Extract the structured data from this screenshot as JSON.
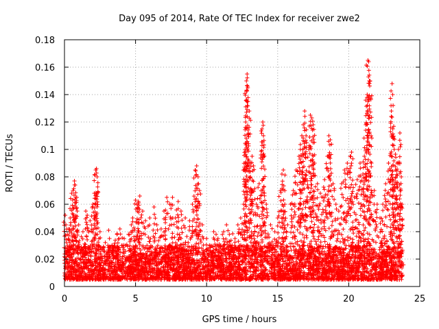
{
  "chart_data": {
    "type": "scatter",
    "title": "Day 095 of 2014, Rate Of TEC Index for receiver zwe2",
    "xlabel": "GPS time / hours",
    "ylabel": "ROTI / TECUs",
    "xlim": [
      0,
      25
    ],
    "ylim": [
      0,
      0.18
    ],
    "xticks": [
      0,
      5,
      10,
      15,
      20,
      25
    ],
    "yticks": [
      0,
      0.02,
      0.04,
      0.06,
      0.08,
      0.1,
      0.12,
      0.14,
      0.16,
      0.18
    ],
    "xtick_labels": [
      "0",
      "5",
      "10",
      "15",
      "20",
      "25"
    ],
    "ytick_labels": [
      "0",
      "0.02",
      "0.04",
      "0.06",
      "0.08",
      "0.1",
      "0.12",
      "0.14",
      "0.16",
      "0.18"
    ],
    "grid": true,
    "marker": "+",
    "series_color": "#ff0000",
    "x_data_range": [
      0,
      23.8
    ],
    "baseline_band": [
      0.005,
      0.03
    ],
    "series": [
      {
        "name": "ROTI",
        "points": [
          [
            0.05,
            0.052
          ],
          [
            0.1,
            0.045
          ],
          [
            0.2,
            0.038
          ],
          [
            0.3,
            0.042
          ],
          [
            0.4,
            0.05
          ],
          [
            0.5,
            0.068
          ],
          [
            0.6,
            0.07
          ],
          [
            0.7,
            0.077
          ],
          [
            0.75,
            0.074
          ],
          [
            0.8,
            0.065
          ],
          [
            0.9,
            0.055
          ],
          [
            1.0,
            0.045
          ],
          [
            1.3,
            0.04
          ],
          [
            1.5,
            0.055
          ],
          [
            1.6,
            0.052
          ],
          [
            1.8,
            0.048
          ],
          [
            2.0,
            0.06
          ],
          [
            2.1,
            0.068
          ],
          [
            2.2,
            0.085
          ],
          [
            2.25,
            0.086
          ],
          [
            2.3,
            0.08
          ],
          [
            2.5,
            0.04
          ],
          [
            3.0,
            0.02
          ],
          [
            3.2,
            0.022
          ],
          [
            3.5,
            0.03
          ],
          [
            3.7,
            0.038
          ],
          [
            3.9,
            0.042
          ],
          [
            4.2,
            0.035
          ],
          [
            4.5,
            0.038
          ],
          [
            4.7,
            0.045
          ],
          [
            4.8,
            0.05
          ],
          [
            5.0,
            0.063
          ],
          [
            5.1,
            0.06
          ],
          [
            5.2,
            0.062
          ],
          [
            5.3,
            0.066
          ],
          [
            5.5,
            0.055
          ],
          [
            5.7,
            0.048
          ],
          [
            6.0,
            0.05
          ],
          [
            6.3,
            0.058
          ],
          [
            6.5,
            0.045
          ],
          [
            6.8,
            0.042
          ],
          [
            7.0,
            0.055
          ],
          [
            7.2,
            0.065
          ],
          [
            7.4,
            0.06
          ],
          [
            7.6,
            0.065
          ],
          [
            7.8,
            0.05
          ],
          [
            8.0,
            0.062
          ],
          [
            8.2,
            0.055
          ],
          [
            8.5,
            0.05
          ],
          [
            8.8,
            0.048
          ],
          [
            9.0,
            0.06
          ],
          [
            9.2,
            0.085
          ],
          [
            9.3,
            0.088
          ],
          [
            9.4,
            0.08
          ],
          [
            9.5,
            0.07
          ],
          [
            9.7,
            0.045
          ],
          [
            10.0,
            0.035
          ],
          [
            10.2,
            0.03
          ],
          [
            10.5,
            0.04
          ],
          [
            10.8,
            0.035
          ],
          [
            11.0,
            0.03
          ],
          [
            11.2,
            0.04
          ],
          [
            11.4,
            0.045
          ],
          [
            11.6,
            0.038
          ],
          [
            11.8,
            0.03
          ],
          [
            12.0,
            0.035
          ],
          [
            12.2,
            0.045
          ],
          [
            12.4,
            0.05
          ],
          [
            12.6,
            0.06
          ],
          [
            12.7,
            0.1
          ],
          [
            12.75,
            0.12
          ],
          [
            12.8,
            0.15
          ],
          [
            12.85,
            0.155
          ],
          [
            12.9,
            0.145
          ],
          [
            13.0,
            0.128
          ],
          [
            13.1,
            0.09
          ],
          [
            13.2,
            0.095
          ],
          [
            13.3,
            0.088
          ],
          [
            13.5,
            0.06
          ],
          [
            13.7,
            0.075
          ],
          [
            13.9,
            0.115
          ],
          [
            13.95,
            0.12
          ],
          [
            14.0,
            0.11
          ],
          [
            14.2,
            0.06
          ],
          [
            14.5,
            0.045
          ],
          [
            14.8,
            0.04
          ],
          [
            15.0,
            0.05
          ],
          [
            15.2,
            0.07
          ],
          [
            15.3,
            0.082
          ],
          [
            15.4,
            0.085
          ],
          [
            15.5,
            0.06
          ],
          [
            15.7,
            0.045
          ],
          [
            15.9,
            0.06
          ],
          [
            16.1,
            0.07
          ],
          [
            16.3,
            0.085
          ],
          [
            16.5,
            0.095
          ],
          [
            16.6,
            0.1
          ],
          [
            16.7,
            0.11
          ],
          [
            16.8,
            0.118
          ],
          [
            16.9,
            0.128
          ],
          [
            17.0,
            0.11
          ],
          [
            17.2,
            0.1
          ],
          [
            17.3,
            0.125
          ],
          [
            17.4,
            0.123
          ],
          [
            17.5,
            0.118
          ],
          [
            17.6,
            0.09
          ],
          [
            17.8,
            0.075
          ],
          [
            18.0,
            0.068
          ],
          [
            18.2,
            0.065
          ],
          [
            18.3,
            0.078
          ],
          [
            18.5,
            0.095
          ],
          [
            18.6,
            0.11
          ],
          [
            18.7,
            0.107
          ],
          [
            18.9,
            0.075
          ],
          [
            19.1,
            0.06
          ],
          [
            19.3,
            0.055
          ],
          [
            19.5,
            0.075
          ],
          [
            19.7,
            0.085
          ],
          [
            19.9,
            0.09
          ],
          [
            20.1,
            0.095
          ],
          [
            20.2,
            0.098
          ],
          [
            20.4,
            0.065
          ],
          [
            20.6,
            0.078
          ],
          [
            20.8,
            0.09
          ],
          [
            21.0,
            0.082
          ],
          [
            21.1,
            0.095
          ],
          [
            21.2,
            0.118
          ],
          [
            21.3,
            0.14
          ],
          [
            21.35,
            0.165
          ],
          [
            21.4,
            0.164
          ],
          [
            21.5,
            0.15
          ],
          [
            21.6,
            0.09
          ],
          [
            21.8,
            0.07
          ],
          [
            22.0,
            0.06
          ],
          [
            22.2,
            0.05
          ],
          [
            22.4,
            0.06
          ],
          [
            22.6,
            0.075
          ],
          [
            22.8,
            0.09
          ],
          [
            23.0,
            0.128
          ],
          [
            23.05,
            0.148
          ],
          [
            23.1,
            0.115
          ],
          [
            23.2,
            0.1
          ],
          [
            23.3,
            0.085
          ],
          [
            23.4,
            0.09
          ],
          [
            23.5,
            0.1
          ],
          [
            23.6,
            0.112
          ],
          [
            23.7,
            0.08
          ],
          [
            23.75,
            0.06
          ]
        ]
      }
    ]
  }
}
